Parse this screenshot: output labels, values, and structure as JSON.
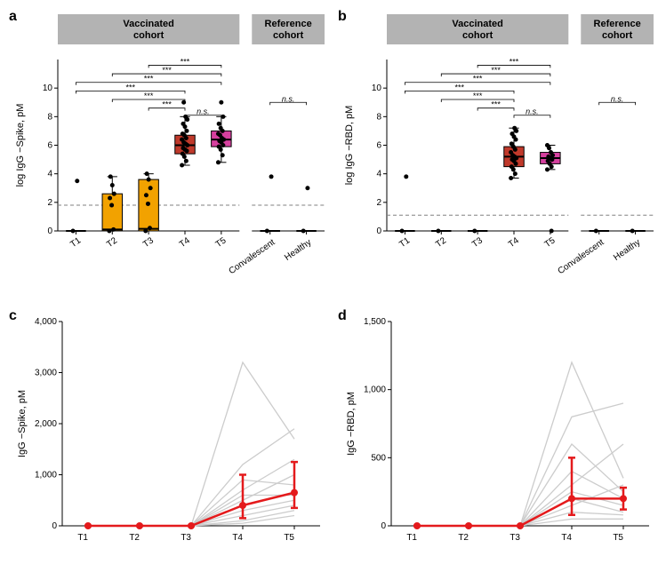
{
  "panelLabels": {
    "a": "a",
    "b": "b",
    "c": "c",
    "d": "d"
  },
  "colors": {
    "headerFill": "#b3b3b3",
    "dashed": "#808080",
    "spaghetti": "#cccccc",
    "median": "#e41a1c",
    "point": "#000000",
    "box_T2": "#f2a200",
    "box_T3": "#f2a200",
    "box_T4": "#c0392b",
    "box_T5": "#d6409f",
    "box_default": "#ffffff"
  },
  "topPanels": {
    "headers": {
      "vacc": "Vaccinated\ncohort",
      "ref": "Reference\ncohort"
    },
    "xTicksVacc": [
      "T1",
      "T2",
      "T3",
      "T4",
      "T5"
    ],
    "xTicksRef": [
      "Convalescent",
      "Healthy"
    ],
    "a": {
      "ylabel": "log IgG −Spike, pM",
      "ylim": [
        0,
        10
      ],
      "yticks": [
        0,
        2,
        4,
        6,
        8,
        10
      ],
      "threshold": 1.8,
      "boxes": {
        "T1": {
          "q1": 0,
          "median": 0,
          "q3": 0,
          "wl": 0,
          "wh": 0,
          "color": "box_default",
          "outliers": [
            0,
            3.5
          ]
        },
        "T2": {
          "q1": 0,
          "median": 0.1,
          "q3": 2.6,
          "wl": 0,
          "wh": 3.8,
          "color": "box_T2",
          "outliers": [
            0,
            0.1,
            1.8,
            2.3,
            2.6,
            3.2,
            3.8
          ]
        },
        "T3": {
          "q1": 0,
          "median": 0.15,
          "q3": 3.6,
          "wl": 0,
          "wh": 4.0,
          "color": "box_T3",
          "outliers": [
            0,
            0.2,
            1.9,
            2.5,
            3.0,
            3.6,
            4.0
          ]
        },
        "T4": {
          "q1": 5.4,
          "median": 6.0,
          "q3": 6.7,
          "wl": 4.6,
          "wh": 8.0,
          "color": "box_T4",
          "outliers": [
            4.6,
            4.9,
            5.2,
            5.4,
            5.6,
            5.7,
            5.8,
            6.0,
            6.1,
            6.2,
            6.4,
            6.5,
            6.7,
            6.8,
            7.0,
            7.3,
            7.5,
            7.8,
            8.0,
            9.0
          ]
        },
        "T5": {
          "q1": 5.9,
          "median": 6.4,
          "q3": 7.0,
          "wl": 4.8,
          "wh": 8.0,
          "color": "box_T5",
          "outliers": [
            4.8,
            5.3,
            5.7,
            5.9,
            6.0,
            6.2,
            6.3,
            6.4,
            6.5,
            6.7,
            6.8,
            7.0,
            7.2,
            7.5,
            8.0,
            9.0
          ]
        },
        "Convalescent": {
          "q1": 0,
          "median": 0,
          "q3": 0,
          "wl": 0,
          "wh": 0,
          "color": "box_default",
          "outliers": [
            0,
            3.8
          ]
        },
        "Healthy": {
          "q1": 0,
          "median": 0,
          "q3": 0,
          "wl": 0,
          "wh": 0,
          "color": "box_default",
          "outliers": [
            0,
            3.0
          ]
        }
      },
      "sig": {
        "lines": [
          {
            "from": "T1",
            "to": "T4",
            "y": 9.8,
            "label": "***"
          },
          {
            "from": "T1",
            "to": "T5",
            "y": 10.4,
            "label": "***"
          },
          {
            "from": "T2",
            "to": "T4",
            "y": 9.2,
            "label": "***"
          },
          {
            "from": "T2",
            "to": "T5",
            "y": 11.0,
            "label": "***"
          },
          {
            "from": "T3",
            "to": "T4",
            "y": 8.6,
            "label": "***"
          },
          {
            "from": "T3",
            "to": "T5",
            "y": 11.6,
            "label": "***"
          },
          {
            "from": "T4",
            "to": "T5",
            "y": 8.1,
            "label": "n.s.",
            "italic": true
          }
        ],
        "ref": {
          "from": "Convalescent",
          "to": "Healthy",
          "y": 9.0,
          "label": "n.s.",
          "italic": true
        }
      }
    },
    "b": {
      "ylabel": "log IgG −RBD, pM",
      "ylim": [
        0,
        10
      ],
      "yticks": [
        0,
        2,
        4,
        6,
        8,
        10
      ],
      "threshold": 1.1,
      "boxes": {
        "T1": {
          "q1": 0,
          "median": 0,
          "q3": 0,
          "wl": 0,
          "wh": 0,
          "color": "box_default",
          "outliers": [
            0,
            3.8
          ]
        },
        "T2": {
          "q1": 0,
          "median": 0,
          "q3": 0,
          "wl": 0,
          "wh": 0,
          "color": "box_default",
          "outliers": [
            0
          ]
        },
        "T3": {
          "q1": 0,
          "median": 0,
          "q3": 0,
          "wl": 0,
          "wh": 0,
          "color": "box_default",
          "outliers": [
            0
          ]
        },
        "T4": {
          "q1": 4.5,
          "median": 5.2,
          "q3": 5.9,
          "wl": 3.7,
          "wh": 7.2,
          "color": "box_T4",
          "outliers": [
            3.7,
            4.0,
            4.3,
            4.5,
            4.7,
            4.9,
            5.0,
            5.1,
            5.2,
            5.3,
            5.5,
            5.7,
            5.9,
            6.1,
            6.4,
            6.6,
            6.8,
            7.0,
            7.2
          ]
        },
        "T5": {
          "q1": 4.7,
          "median": 5.1,
          "q3": 5.5,
          "wl": 4.3,
          "wh": 6.0,
          "color": "box_T5",
          "outliers": [
            4.3,
            4.5,
            4.7,
            4.9,
            5.0,
            5.1,
            5.2,
            5.3,
            5.5,
            5.8,
            6.0,
            0
          ]
        },
        "Convalescent": {
          "q1": 0,
          "median": 0,
          "q3": 0,
          "wl": 0,
          "wh": 0,
          "color": "box_default",
          "outliers": [
            0
          ]
        },
        "Healthy": {
          "q1": 0,
          "median": 0,
          "q3": 0,
          "wl": 0,
          "wh": 0,
          "color": "box_default",
          "outliers": [
            0
          ]
        }
      },
      "sig": {
        "lines": [
          {
            "from": "T1",
            "to": "T4",
            "y": 9.8,
            "label": "***"
          },
          {
            "from": "T1",
            "to": "T5",
            "y": 10.4,
            "label": "***"
          },
          {
            "from": "T2",
            "to": "T4",
            "y": 9.2,
            "label": "***"
          },
          {
            "from": "T2",
            "to": "T5",
            "y": 11.0,
            "label": "***"
          },
          {
            "from": "T3",
            "to": "T4",
            "y": 8.6,
            "label": "***"
          },
          {
            "from": "T3",
            "to": "T5",
            "y": 11.6,
            "label": "***"
          },
          {
            "from": "T4",
            "to": "T5",
            "y": 8.1,
            "label": "n.s.",
            "italic": true
          }
        ],
        "ref": {
          "from": "Convalescent",
          "to": "Healthy",
          "y": 9.0,
          "label": "n.s.",
          "italic": true
        }
      }
    }
  },
  "bottomPanels": {
    "xTicks": [
      "T1",
      "T2",
      "T3",
      "T4",
      "T5"
    ],
    "c": {
      "ylabel": "IgG −Spike, pM",
      "ylim": [
        0,
        4000
      ],
      "yticks": [
        0,
        1000,
        2000,
        3000,
        4000
      ],
      "spaghetti": [
        [
          0,
          0,
          0,
          3200,
          1700
        ],
        [
          0,
          0,
          0,
          1200,
          1900
        ],
        [
          0,
          0,
          0,
          900,
          800
        ],
        [
          0,
          0,
          0,
          700,
          1300
        ],
        [
          0,
          0,
          0,
          600,
          600
        ],
        [
          0,
          0,
          0,
          500,
          1000
        ],
        [
          0,
          0,
          0,
          300,
          500
        ],
        [
          0,
          0,
          0,
          200,
          400
        ],
        [
          0,
          0,
          0,
          100,
          300
        ],
        [
          0,
          0,
          0,
          50,
          200
        ]
      ],
      "median": {
        "values": [
          0,
          0,
          0,
          400,
          650
        ],
        "errLow": [
          0,
          0,
          0,
          150,
          350
        ],
        "errHigh": [
          0,
          0,
          0,
          1000,
          1250
        ]
      }
    },
    "d": {
      "ylabel": "IgG −RBD, pM",
      "ylim": [
        0,
        1500
      ],
      "yticks": [
        0,
        500,
        1000,
        1500
      ],
      "spaghetti": [
        [
          0,
          0,
          0,
          1200,
          350
        ],
        [
          0,
          0,
          0,
          800,
          900
        ],
        [
          0,
          0,
          0,
          600,
          250
        ],
        [
          0,
          0,
          0,
          400,
          200
        ],
        [
          0,
          0,
          0,
          300,
          600
        ],
        [
          0,
          0,
          0,
          250,
          150
        ],
        [
          0,
          0,
          0,
          200,
          100
        ],
        [
          0,
          0,
          0,
          150,
          300
        ],
        [
          0,
          0,
          0,
          100,
          80
        ],
        [
          0,
          0,
          0,
          50,
          50
        ]
      ],
      "median": {
        "values": [
          0,
          0,
          0,
          200,
          200
        ],
        "errLow": [
          0,
          0,
          0,
          80,
          120
        ],
        "errHigh": [
          0,
          0,
          0,
          500,
          280
        ]
      }
    }
  }
}
